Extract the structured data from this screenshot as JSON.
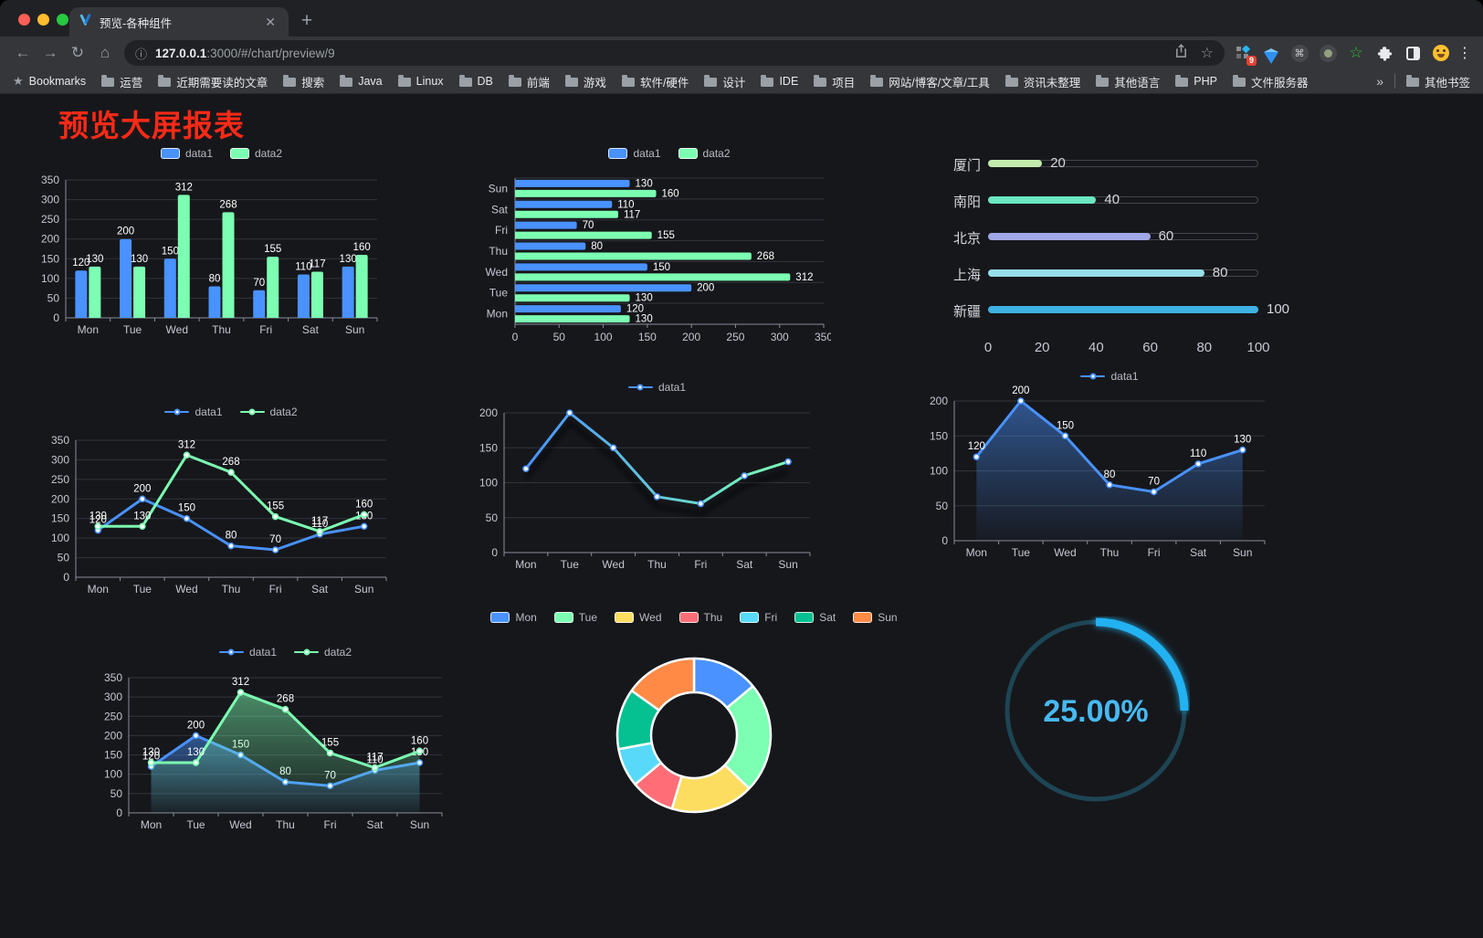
{
  "browser": {
    "tab": {
      "title": "预览-各种组件"
    },
    "nav": {
      "back": "←",
      "forward": "→",
      "reload": "↻",
      "home": "⌂"
    },
    "url": {
      "info_icon": "ⓘ",
      "host": "127.0.0.1",
      "path": ":3000/#/chart/preview/9"
    },
    "extensions": {
      "grid_badge": "9"
    },
    "menu_icon": "⋮",
    "new_tab_icon": "+",
    "close_tab_icon": "✕"
  },
  "bookmarks_bar": {
    "star_icon": "★",
    "label": "Bookmarks",
    "folders": [
      "运营",
      "近期需要读的文章",
      "搜索",
      "Java",
      "Linux",
      "DB",
      "前端",
      "游戏",
      "软件/硬件",
      "设计",
      "IDE",
      "项目",
      "网站/博客/文章/工具",
      "资讯未整理",
      "其他语言",
      "PHP",
      "文件服务器"
    ],
    "overflow_chevron": "»",
    "other_bookmarks": "其他书签"
  },
  "page": {
    "title": "预览大屏报表",
    "title_color": "#f92a17"
  },
  "chart_data": [
    {
      "id": "grouped-bar",
      "type": "bar",
      "categories": [
        "Mon",
        "Tue",
        "Wed",
        "Thu",
        "Fri",
        "Sat",
        "Sun"
      ],
      "series": [
        {
          "name": "data1",
          "color": "#4992ff",
          "values": [
            120,
            200,
            150,
            80,
            70,
            110,
            130
          ]
        },
        {
          "name": "data2",
          "color": "#7cffb2",
          "values": [
            130,
            130,
            312,
            268,
            155,
            117,
            160
          ]
        }
      ],
      "ylim": [
        0,
        350
      ],
      "yticks": [
        0,
        50,
        100,
        150,
        200,
        250,
        300,
        350
      ],
      "legend_marker": "rect",
      "grid": true
    },
    {
      "id": "grouped-bar-horizontal",
      "type": "bar-horizontal",
      "categories_top_to_bottom": [
        "Sun",
        "Sat",
        "Fri",
        "Thu",
        "Wed",
        "Tue",
        "Mon"
      ],
      "series": [
        {
          "name": "data1",
          "color": "#4992ff",
          "values": [
            130,
            110,
            70,
            80,
            150,
            200,
            120
          ]
        },
        {
          "name": "data2",
          "color": "#7cffb2",
          "values": [
            160,
            117,
            155,
            268,
            312,
            130,
            130
          ]
        }
      ],
      "xlim": [
        0,
        350
      ],
      "xticks": [
        0,
        50,
        100,
        150,
        200,
        250,
        300,
        350
      ],
      "legend_marker": "rect",
      "grid": true
    },
    {
      "id": "city-progress",
      "type": "progress",
      "max": 100,
      "items": [
        {
          "label": "厦门",
          "value": 20,
          "color": "#c4ebad"
        },
        {
          "label": "南阳",
          "value": 40,
          "color": "#6be6c1"
        },
        {
          "label": "北京",
          "value": 60,
          "color": "#a0a7e6"
        },
        {
          "label": "上海",
          "value": 80,
          "color": "#96dee8"
        },
        {
          "label": "新疆",
          "value": 100,
          "color": "#3fb1e3"
        }
      ],
      "xticks": [
        0,
        20,
        40,
        60,
        80,
        100
      ]
    },
    {
      "id": "two-line",
      "type": "line",
      "categories": [
        "Mon",
        "Tue",
        "Wed",
        "Thu",
        "Fri",
        "Sat",
        "Sun"
      ],
      "series": [
        {
          "name": "data1",
          "color": "#4992ff",
          "values": [
            120,
            200,
            150,
            80,
            70,
            110,
            130
          ],
          "labels": true
        },
        {
          "name": "data2",
          "color": "#7cffb2",
          "values": [
            130,
            130,
            312,
            268,
            155,
            117,
            160
          ],
          "labels": true
        }
      ],
      "ylim": [
        0,
        350
      ],
      "yticks": [
        0,
        50,
        100,
        150,
        200,
        250,
        300,
        350
      ],
      "legend_marker": "line",
      "grid": true
    },
    {
      "id": "gradient-line",
      "type": "line",
      "categories": [
        "Mon",
        "Tue",
        "Wed",
        "Thu",
        "Fri",
        "Sat",
        "Sun"
      ],
      "series": [
        {
          "name": "data1",
          "color": "#4992ff",
          "gradient": [
            "#4992ff",
            "#7cffb2"
          ],
          "shadow": true,
          "values": [
            120,
            200,
            150,
            80,
            70,
            110,
            130
          ],
          "labels": false
        }
      ],
      "ylim": [
        0,
        200
      ],
      "yticks": [
        0,
        50,
        100,
        150,
        200
      ],
      "legend_marker": "line",
      "grid": true
    },
    {
      "id": "area-line",
      "type": "line",
      "categories": [
        "Mon",
        "Tue",
        "Wed",
        "Thu",
        "Fri",
        "Sat",
        "Sun"
      ],
      "series": [
        {
          "name": "data1",
          "color": "#4992ff",
          "area": true,
          "values": [
            120,
            200,
            150,
            80,
            70,
            110,
            130
          ],
          "labels": true
        }
      ],
      "ylim": [
        0,
        200
      ],
      "yticks": [
        0,
        50,
        100,
        150,
        200
      ],
      "legend_marker": "line",
      "grid": true
    },
    {
      "id": "two-area-line",
      "type": "line",
      "categories": [
        "Mon",
        "Tue",
        "Wed",
        "Thu",
        "Fri",
        "Sat",
        "Sun"
      ],
      "series": [
        {
          "name": "data1",
          "color": "#4992ff",
          "area": true,
          "values": [
            120,
            200,
            150,
            80,
            70,
            110,
            130
          ],
          "labels": true
        },
        {
          "name": "data2",
          "color": "#7cffb2",
          "area": true,
          "values": [
            130,
            130,
            312,
            268,
            155,
            117,
            160
          ],
          "labels": true
        }
      ],
      "ylim": [
        0,
        350
      ],
      "yticks": [
        0,
        50,
        100,
        150,
        200,
        250,
        300,
        350
      ],
      "legend_marker": "line",
      "grid": true
    },
    {
      "id": "donut",
      "type": "pie",
      "inner_radius_ratio": 0.56,
      "items": [
        {
          "name": "Mon",
          "value": 120,
          "color": "#4992ff"
        },
        {
          "name": "Tue",
          "value": 200,
          "color": "#7cffb2"
        },
        {
          "name": "Wed",
          "value": 150,
          "color": "#fddd60"
        },
        {
          "name": "Thu",
          "value": 80,
          "color": "#ff6e76"
        },
        {
          "name": "Fri",
          "value": 70,
          "color": "#58d9f9"
        },
        {
          "name": "Sat",
          "value": 110,
          "color": "#05c091"
        },
        {
          "name": "Sun",
          "value": 130,
          "color": "#ff8a45"
        }
      ],
      "legend_marker": "rect"
    },
    {
      "id": "gauge",
      "type": "gauge",
      "value": 25,
      "display": "25.00%",
      "progress_color": "#22b2f2",
      "track_color": "#1d4554",
      "text_color": "#47b9f2"
    }
  ]
}
